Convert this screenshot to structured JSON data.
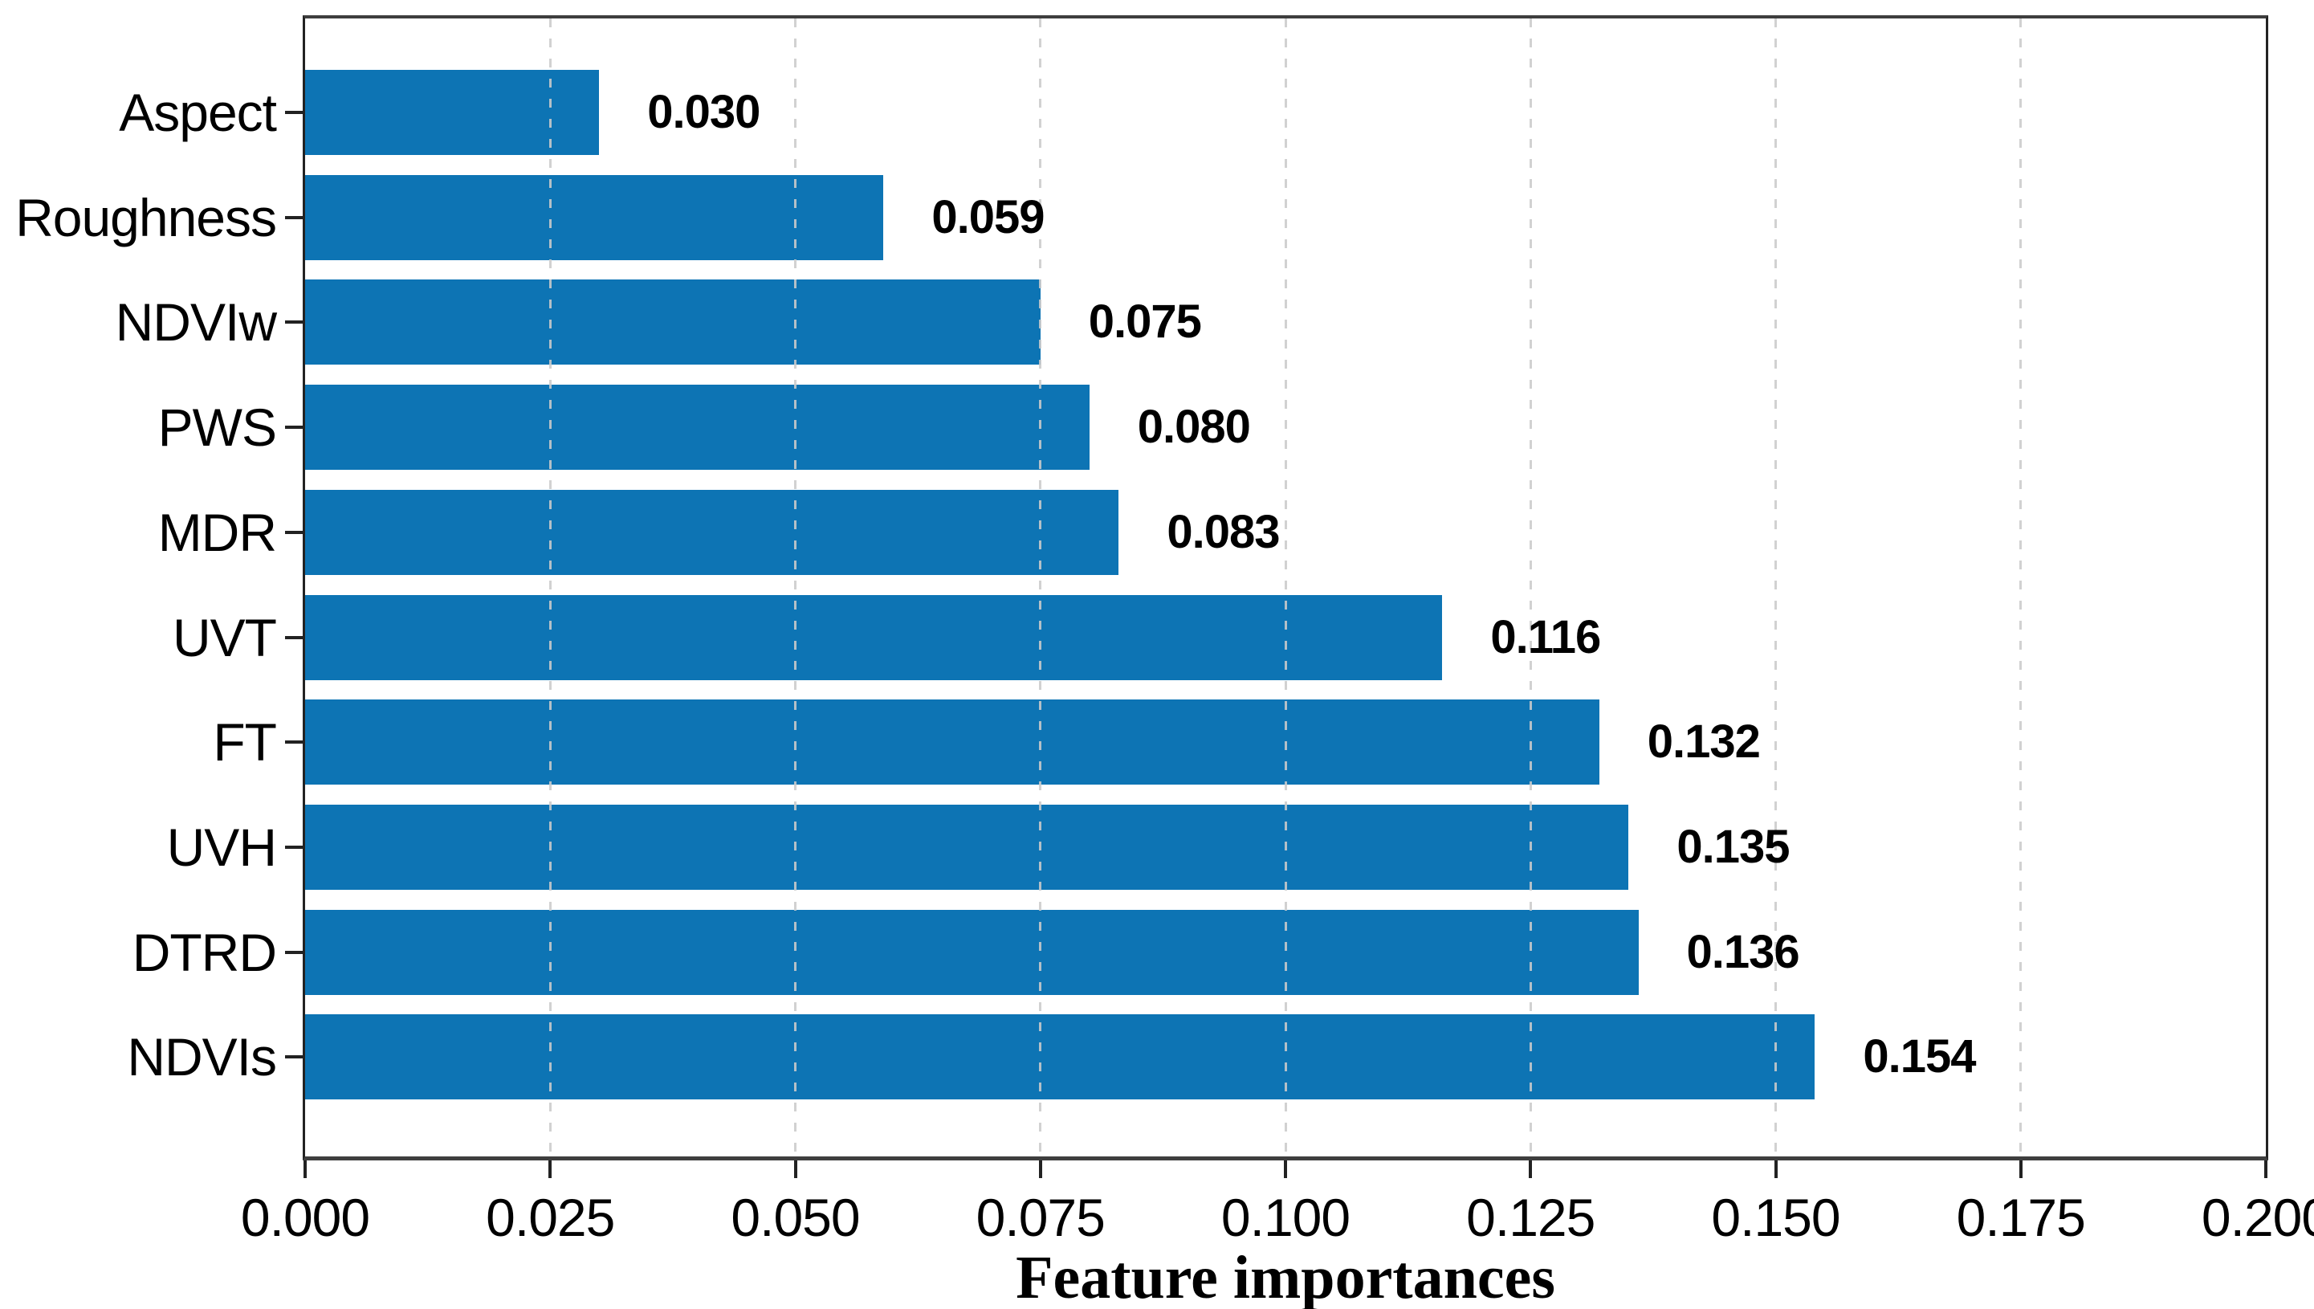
{
  "chart_data": {
    "type": "bar",
    "orientation": "horizontal",
    "xlabel": "Feature importances",
    "categories": [
      "Aspect",
      "Roughness",
      "NDVIw",
      "PWS",
      "MDR",
      "UVT",
      "FT",
      "UVH",
      "DTRD",
      "NDVIs"
    ],
    "values": [
      0.03,
      0.059,
      0.075,
      0.08,
      0.083,
      0.116,
      0.132,
      0.135,
      0.136,
      0.154
    ],
    "value_labels": [
      "0.030",
      "0.059",
      "0.075",
      "0.080",
      "0.083",
      "0.116",
      "0.132",
      "0.135",
      "0.136",
      "0.154"
    ],
    "xlim": [
      0.0,
      0.2
    ],
    "xticks": [
      0.0,
      0.025,
      0.05,
      0.075,
      0.1,
      0.125,
      0.15,
      0.175,
      0.2
    ],
    "xtick_labels": [
      "0.000",
      "0.025",
      "0.050",
      "0.075",
      "0.100",
      "0.125",
      "0.150",
      "0.175",
      "0.200"
    ],
    "grid": {
      "axis": "x",
      "style": "dashed",
      "over_bars": true,
      "color": "#cbcbcb"
    },
    "bar_color": "#0d74b4",
    "spine_color": "#3e3e3e",
    "text_color": "#000000"
  }
}
